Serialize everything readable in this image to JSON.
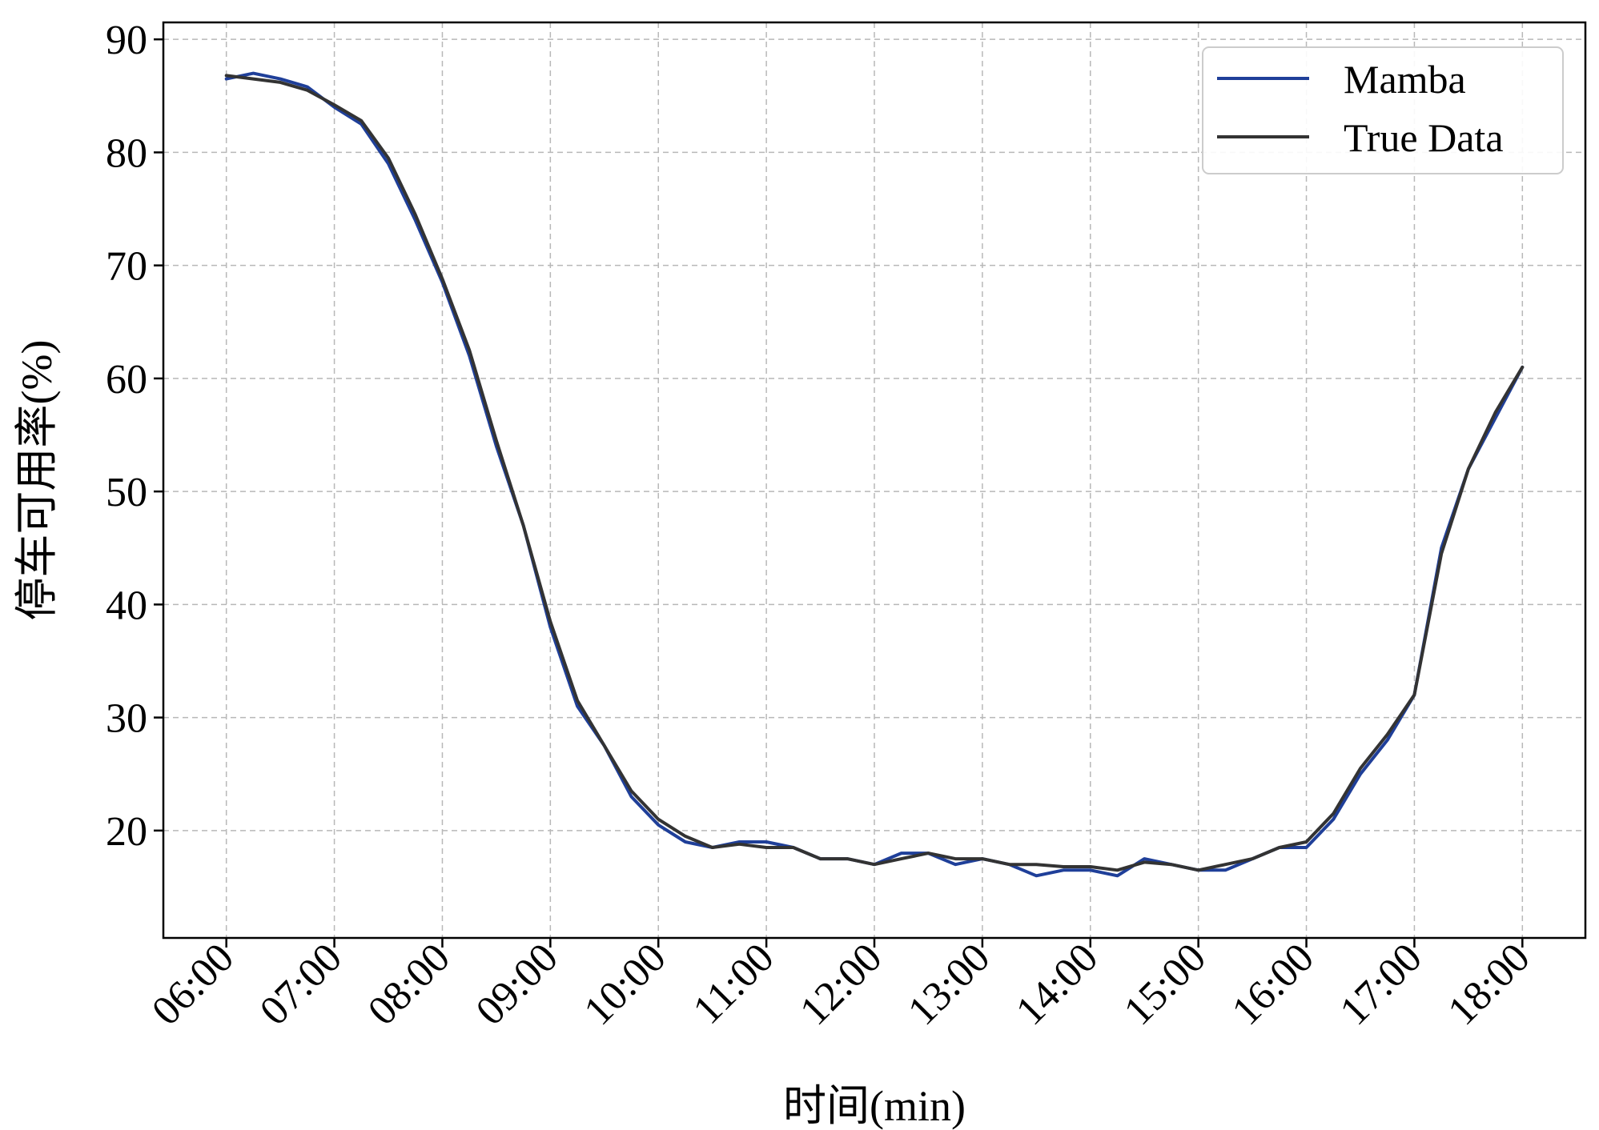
{
  "chart_data": {
    "type": "line",
    "title": "",
    "xlabel": "时间(min)",
    "ylabel": "停车可用率(%)",
    "x_ticks": [
      "06:00",
      "07:00",
      "08:00",
      "09:00",
      "10:00",
      "11:00",
      "12:00",
      "13:00",
      "14:00",
      "15:00",
      "16:00",
      "17:00",
      "18:00"
    ],
    "y_ticks": [
      20,
      30,
      40,
      50,
      60,
      70,
      80,
      90
    ],
    "xlim": [
      "05:25",
      "18:35"
    ],
    "ylim": [
      10.5,
      91.5
    ],
    "grid": true,
    "legend_position": "top-right",
    "x": [
      "06:00",
      "06:15",
      "06:30",
      "06:45",
      "07:00",
      "07:15",
      "07:30",
      "07:45",
      "08:00",
      "08:15",
      "08:30",
      "08:45",
      "09:00",
      "09:15",
      "09:30",
      "09:45",
      "10:00",
      "10:15",
      "10:30",
      "10:45",
      "11:00",
      "11:15",
      "11:30",
      "11:45",
      "12:00",
      "12:15",
      "12:30",
      "12:45",
      "13:00",
      "13:15",
      "13:30",
      "13:45",
      "14:00",
      "14:15",
      "14:30",
      "14:45",
      "15:00",
      "15:15",
      "15:30",
      "15:45",
      "16:00",
      "16:15",
      "16:30",
      "16:45",
      "17:00",
      "17:15",
      "17:30",
      "17:45",
      "18:00"
    ],
    "series": [
      {
        "name": "Mamba",
        "color": "#1f3f99",
        "values": [
          86.5,
          87.0,
          86.5,
          85.8,
          84.0,
          82.5,
          79.0,
          74.0,
          68.5,
          62.0,
          54.0,
          47.0,
          38.0,
          31.0,
          27.5,
          23.0,
          20.5,
          19.0,
          18.5,
          19.0,
          19.0,
          18.5,
          17.5,
          17.5,
          17.0,
          18.0,
          18.0,
          17.0,
          17.5,
          17.0,
          16.0,
          16.5,
          16.5,
          16.0,
          17.5,
          17.0,
          16.5,
          16.5,
          17.5,
          18.5,
          18.5,
          21.0,
          25.0,
          28.0,
          32.0,
          45.0,
          52.0,
          56.5,
          61.0
        ]
      },
      {
        "name": "True Data",
        "color": "#333333",
        "values": [
          86.8,
          86.5,
          86.2,
          85.5,
          84.2,
          82.8,
          79.5,
          74.5,
          68.8,
          62.5,
          54.5,
          47.0,
          38.5,
          31.5,
          27.5,
          23.5,
          21.0,
          19.5,
          18.5,
          18.8,
          18.5,
          18.5,
          17.5,
          17.5,
          17.0,
          17.5,
          18.0,
          17.5,
          17.5,
          17.0,
          17.0,
          16.8,
          16.8,
          16.5,
          17.2,
          17.0,
          16.5,
          17.0,
          17.5,
          18.5,
          19.0,
          21.5,
          25.5,
          28.5,
          32.0,
          44.5,
          52.0,
          57.0,
          61.0
        ]
      }
    ]
  }
}
